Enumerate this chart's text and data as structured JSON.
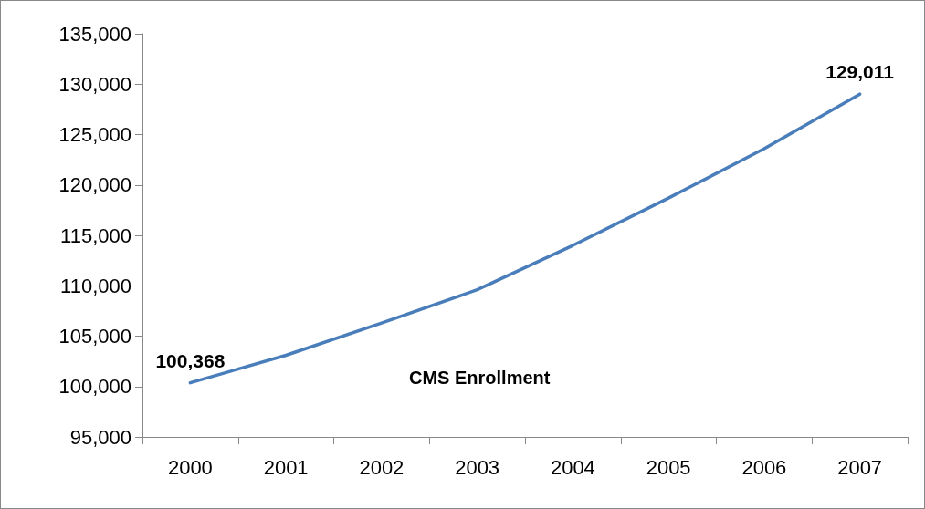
{
  "chart_data": {
    "type": "line",
    "categories": [
      "2000",
      "2001",
      "2002",
      "2003",
      "2004",
      "2005",
      "2006",
      "2007"
    ],
    "series": [
      {
        "name": "CMS Enrollment",
        "color": "#4a7ebb",
        "values": [
          100368,
          103100,
          106300,
          109600,
          114000,
          118700,
          123600,
          129011
        ],
        "value_labels": [
          "100,368",
          null,
          null,
          null,
          null,
          null,
          null,
          "129,011"
        ]
      }
    ],
    "ylim": [
      95000,
      135000
    ],
    "yticks": [
      {
        "value": 95000,
        "label": "95,000"
      },
      {
        "value": 100000,
        "label": "100,000"
      },
      {
        "value": 105000,
        "label": "105,000"
      },
      {
        "value": 110000,
        "label": "110,000"
      },
      {
        "value": 115000,
        "label": "115,000"
      },
      {
        "value": 120000,
        "label": "120,000"
      },
      {
        "value": 125000,
        "label": "125,000"
      },
      {
        "value": 130000,
        "label": "130,000"
      },
      {
        "value": 135000,
        "label": "135,000"
      }
    ],
    "grid": false,
    "legend": false,
    "marker": "none",
    "line_style": "solid"
  }
}
